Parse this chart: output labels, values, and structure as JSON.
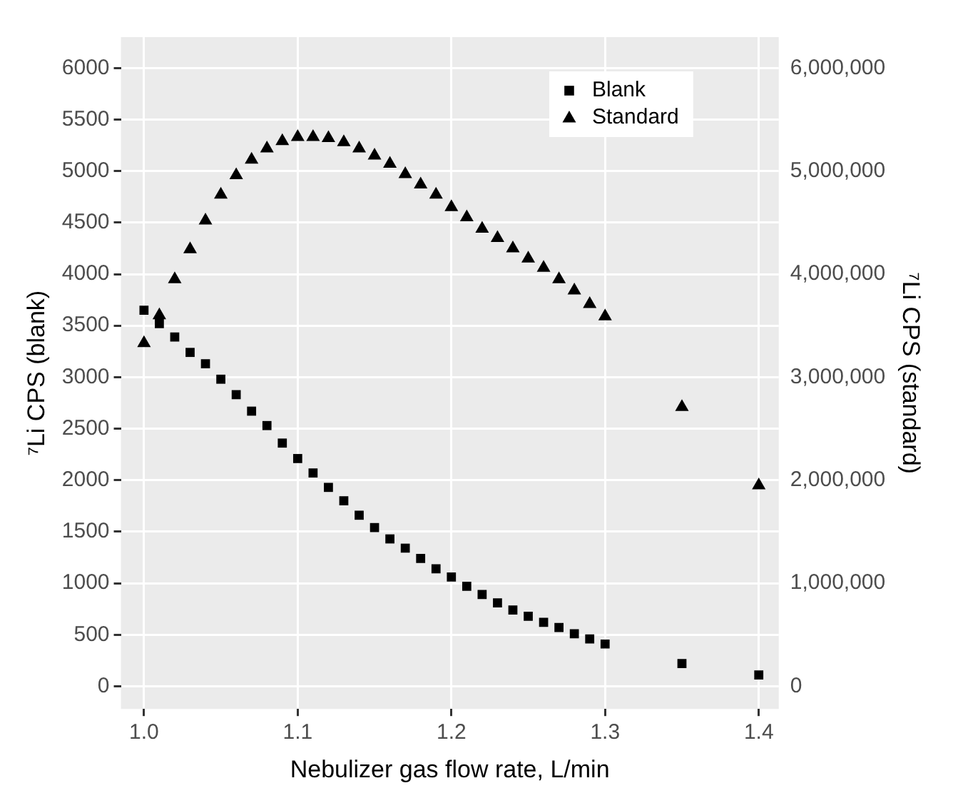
{
  "chart_data": {
    "type": "scatter",
    "xlabel": "Nebulizer gas flow rate, L/min",
    "ylabel": "⁷Li CPS (blank)",
    "y2label": "⁷Li CPS (standard)",
    "x": [
      1.0,
      1.01,
      1.02,
      1.03,
      1.04,
      1.05,
      1.06,
      1.07,
      1.08,
      1.09,
      1.1,
      1.11,
      1.12,
      1.13,
      1.14,
      1.15,
      1.16,
      1.17,
      1.18,
      1.19,
      1.2,
      1.21,
      1.22,
      1.23,
      1.24,
      1.25,
      1.26,
      1.27,
      1.28,
      1.29,
      1.3,
      1.35,
      1.4
    ],
    "series": [
      {
        "name": "Blank",
        "color": "#000000",
        "marker": "square",
        "values": [
          3650,
          3520,
          3390,
          3240,
          3130,
          2980,
          2830,
          2670,
          2530,
          2360,
          2210,
          2070,
          1930,
          1800,
          1660,
          1540,
          1430,
          1340,
          1240,
          1140,
          1060,
          970,
          890,
          810,
          740,
          680,
          620,
          570,
          510,
          460,
          410,
          220,
          110
        ]
      },
      {
        "name": "Standard",
        "color": "#000000",
        "marker": "triangle",
        "axis": "y2",
        "values": [
          3330000,
          3600000,
          3950000,
          4240000,
          4520000,
          4770000,
          4960000,
          5110000,
          5220000,
          5290000,
          5330000,
          5330000,
          5320000,
          5280000,
          5220000,
          5150000,
          5070000,
          4970000,
          4870000,
          4770000,
          4650000,
          4550000,
          4440000,
          4350000,
          4250000,
          4150000,
          4060000,
          3950000,
          3840000,
          3710000,
          3590000,
          2710000,
          1950000
        ]
      }
    ],
    "xlim": [
      0.985,
      1.413
    ],
    "xticks": [
      {
        "value": 1,
        "label": "1.0"
      },
      {
        "value": 1.1,
        "label": "1.1"
      },
      {
        "value": 1.2,
        "label": "1.2"
      },
      {
        "value": 1.3,
        "label": "1.3"
      },
      {
        "value": 1.4,
        "label": "1.4"
      }
    ],
    "ylim": [
      -220,
      6300
    ],
    "yticks": [
      0,
      500,
      1000,
      1500,
      2000,
      2500,
      3000,
      3500,
      4000,
      4500,
      5000,
      5500,
      6000
    ],
    "y2lim": [
      -220000,
      6300000
    ],
    "y2ticks": [
      {
        "value": 0,
        "label": "0"
      },
      {
        "value": 1000000,
        "label": "1,000,000"
      },
      {
        "value": 2000000,
        "label": "2,000,000"
      },
      {
        "value": 3000000,
        "label": "3,000,000"
      },
      {
        "value": 4000000,
        "label": "4,000,000"
      },
      {
        "value": 5000000,
        "label": "5,000,000"
      },
      {
        "value": 6000000,
        "label": "6,000,000"
      }
    ],
    "grid": true,
    "legend": "top right"
  }
}
